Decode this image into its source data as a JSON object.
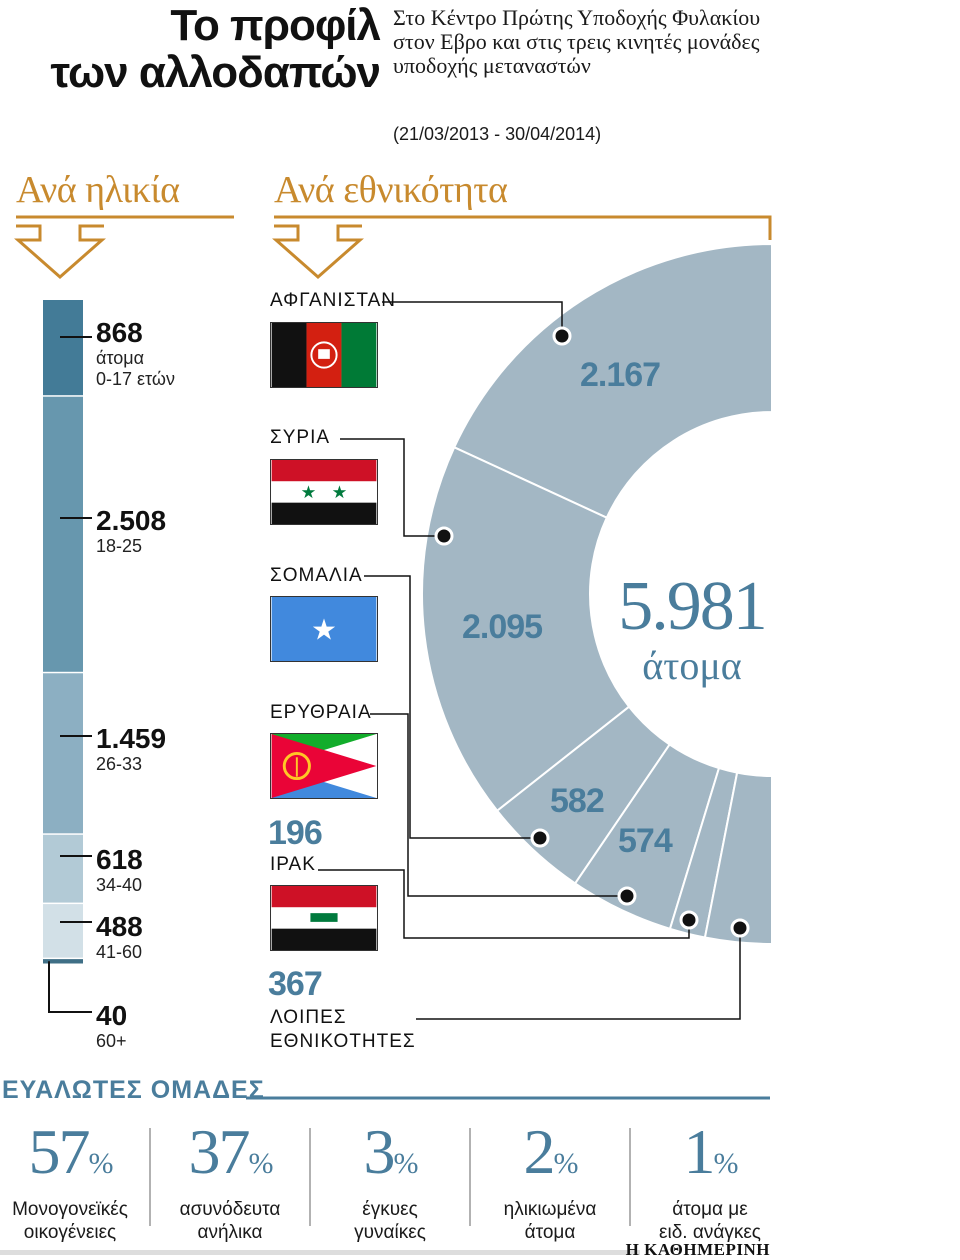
{
  "header": {
    "title_line1": "Το προφίλ",
    "title_line2": "των αλλοδαπών",
    "subtitle": "Στο Κέντρο Πρώτης Υποδοχής Φυλακίου στον Εβρο και στις τρεις κινητές μονάδες υποδοχής μεταναστών",
    "date_range": "(21/03/2013 - 30/04/2014)"
  },
  "sections": {
    "age": "Ανά ηλικία",
    "nationality": "Ανά εθνικότητα"
  },
  "colors": {
    "accent_gold": "#c88a2e",
    "blue_text": "#4a7d9c",
    "donut_fill": "#a3b7c4",
    "bar_shades": [
      "#437b97",
      "#6797ae",
      "#8cafc2",
      "#b2cad6",
      "#d2e0e7",
      "#3f6f86"
    ]
  },
  "chart_data": [
    {
      "type": "bar",
      "title": "Ανά ηλικία",
      "orientation": "stacked-vertical",
      "categories": [
        "0-17 ετών",
        "18-25",
        "26-33",
        "34-40",
        "41-60",
        "60+"
      ],
      "values": [
        868,
        2508,
        1459,
        618,
        488,
        40
      ],
      "value_labels": [
        "868",
        "2.508",
        "1.459",
        "618",
        "488",
        "40"
      ],
      "first_unit": "άτομα"
    },
    {
      "type": "pie",
      "title": "Ανά εθνικότητα",
      "style": "donut (half-shown)",
      "categories": [
        "ΑΦΓΑΝΙΣΤΑΝ",
        "ΣΥΡΙΑ",
        "ΣΟΜΑΛΙΑ",
        "ΕΡΥΘΡΑΙΑ",
        "ΙΡΑΚ",
        "ΛΟΙΠΕΣ ΕΘΝΙΚΟΤΗΤΕΣ"
      ],
      "values": [
        2167,
        2095,
        582,
        574,
        196,
        367
      ],
      "value_labels": [
        "2.167",
        "2.095",
        "582",
        "574",
        "196",
        "367"
      ],
      "total_label": "5.981",
      "total_unit": "άτομα",
      "flags": [
        "afghanistan-flag",
        "syria-flag",
        "somalia-flag",
        "eritrea-flag",
        "iraq-flag"
      ]
    },
    {
      "type": "table",
      "title": "ΕΥΑΛΩΤΕΣ ΟΜΑΔΕΣ",
      "unit": "%",
      "categories": [
        "Μονογονεϊκές οικογένειες",
        "ασυνόδευτα ανήλικα",
        "έγκυες γυναίκες",
        "ηλικιωμένα άτομα",
        "άτομα με ειδ. ανάγκες"
      ],
      "values": [
        57,
        37,
        3,
        2,
        1
      ],
      "label_lines": [
        [
          "Μονογονεϊκές",
          "οικογένειες"
        ],
        [
          "ασυνόδευτα",
          "ανήλικα"
        ],
        [
          "έγκυες",
          "γυναίκες"
        ],
        [
          "ηλικιωμένα",
          "άτομα"
        ],
        [
          "άτομα με",
          "ειδ. ανάγκες"
        ]
      ]
    }
  ],
  "footer": {
    "source": "Η ΚΑΘΗΜΕΡΙΝΗ"
  }
}
